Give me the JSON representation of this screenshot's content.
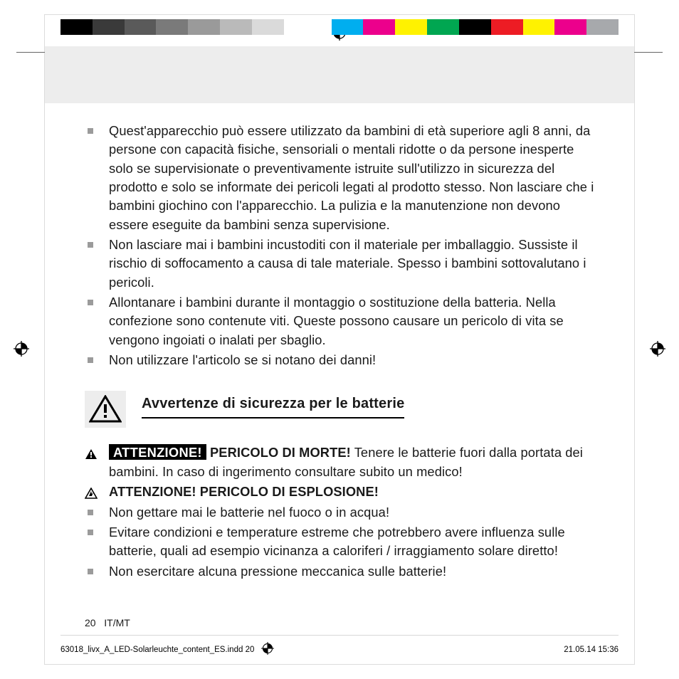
{
  "colorbar": {
    "swatches": [
      "#000000",
      "#3a3a3a",
      "#5a5a5a",
      "#7a7a7a",
      "#9a9a9a",
      "#bababa",
      "#dadada",
      "#ffffff",
      "#ffffff",
      "#00aeef",
      "#ec008c",
      "#fff200",
      "#00a651",
      "#000000",
      "#ed1c24",
      "#fff200",
      "#ec008c",
      "#a7a9ac"
    ]
  },
  "bullets_top": [
    "Quest'apparecchio può essere utilizzato da bambini di età superiore agli 8 anni, da persone con capacità fisiche, sensoriali o mentali ridotte o da persone inesperte solo se supervisionate o preventivamente istruite sull'utilizzo in sicurezza del prodotto e solo se informate dei pericoli legati al prodotto stesso. Non lasciare che i bambini giochino con l'apparecchio. La pulizia e la manutenzione non devono essere eseguite da bambini senza supervisione.",
    "Non lasciare mai i bambini incustoditi con il materiale per imballaggio. Sussiste il rischio di soffocamento a causa di tale materiale. Spesso i bambini sottovalutano i pericoli.",
    "Allontanare i bambini durante il montaggio o sostituzione della batteria. Nella confezione sono contenute viti. Queste possono causare un pericolo di vita se vengono ingoiati o inalati per sbaglio.",
    "Non utilizzare l'articolo se si notano dei danni!"
  ],
  "section2": {
    "title": "Avvertenze di sicurezza per le batterie",
    "line1_blackbox": "ATTENZIONE!",
    "line1_bold": "PERICOLO DI MORTE!",
    "line1_rest": " Tenere le batterie fuori dalla portata dei bambini. In caso di ingerimento consultare subito un medico!",
    "line2_bold": "ATTENZIONE! PERICOLO DI ESPLOSIONE!",
    "bullets": [
      "Non gettare mai le batterie nel fuoco o in acqua!",
      "Evitare condizioni e temperature estreme che potrebbero avere influenza sulle batterie, quali ad esempio vicinanza a caloriferi / irraggiamento solare diretto!",
      "Non esercitare alcuna pressione meccanica sulle batterie!"
    ]
  },
  "footer": {
    "page_num": "20",
    "lang": "IT/MT",
    "slug_file": "63018_livx_A_LED-Solarleuchte_content_ES.indd   20",
    "slug_date": "21.05.14   15:36"
  }
}
